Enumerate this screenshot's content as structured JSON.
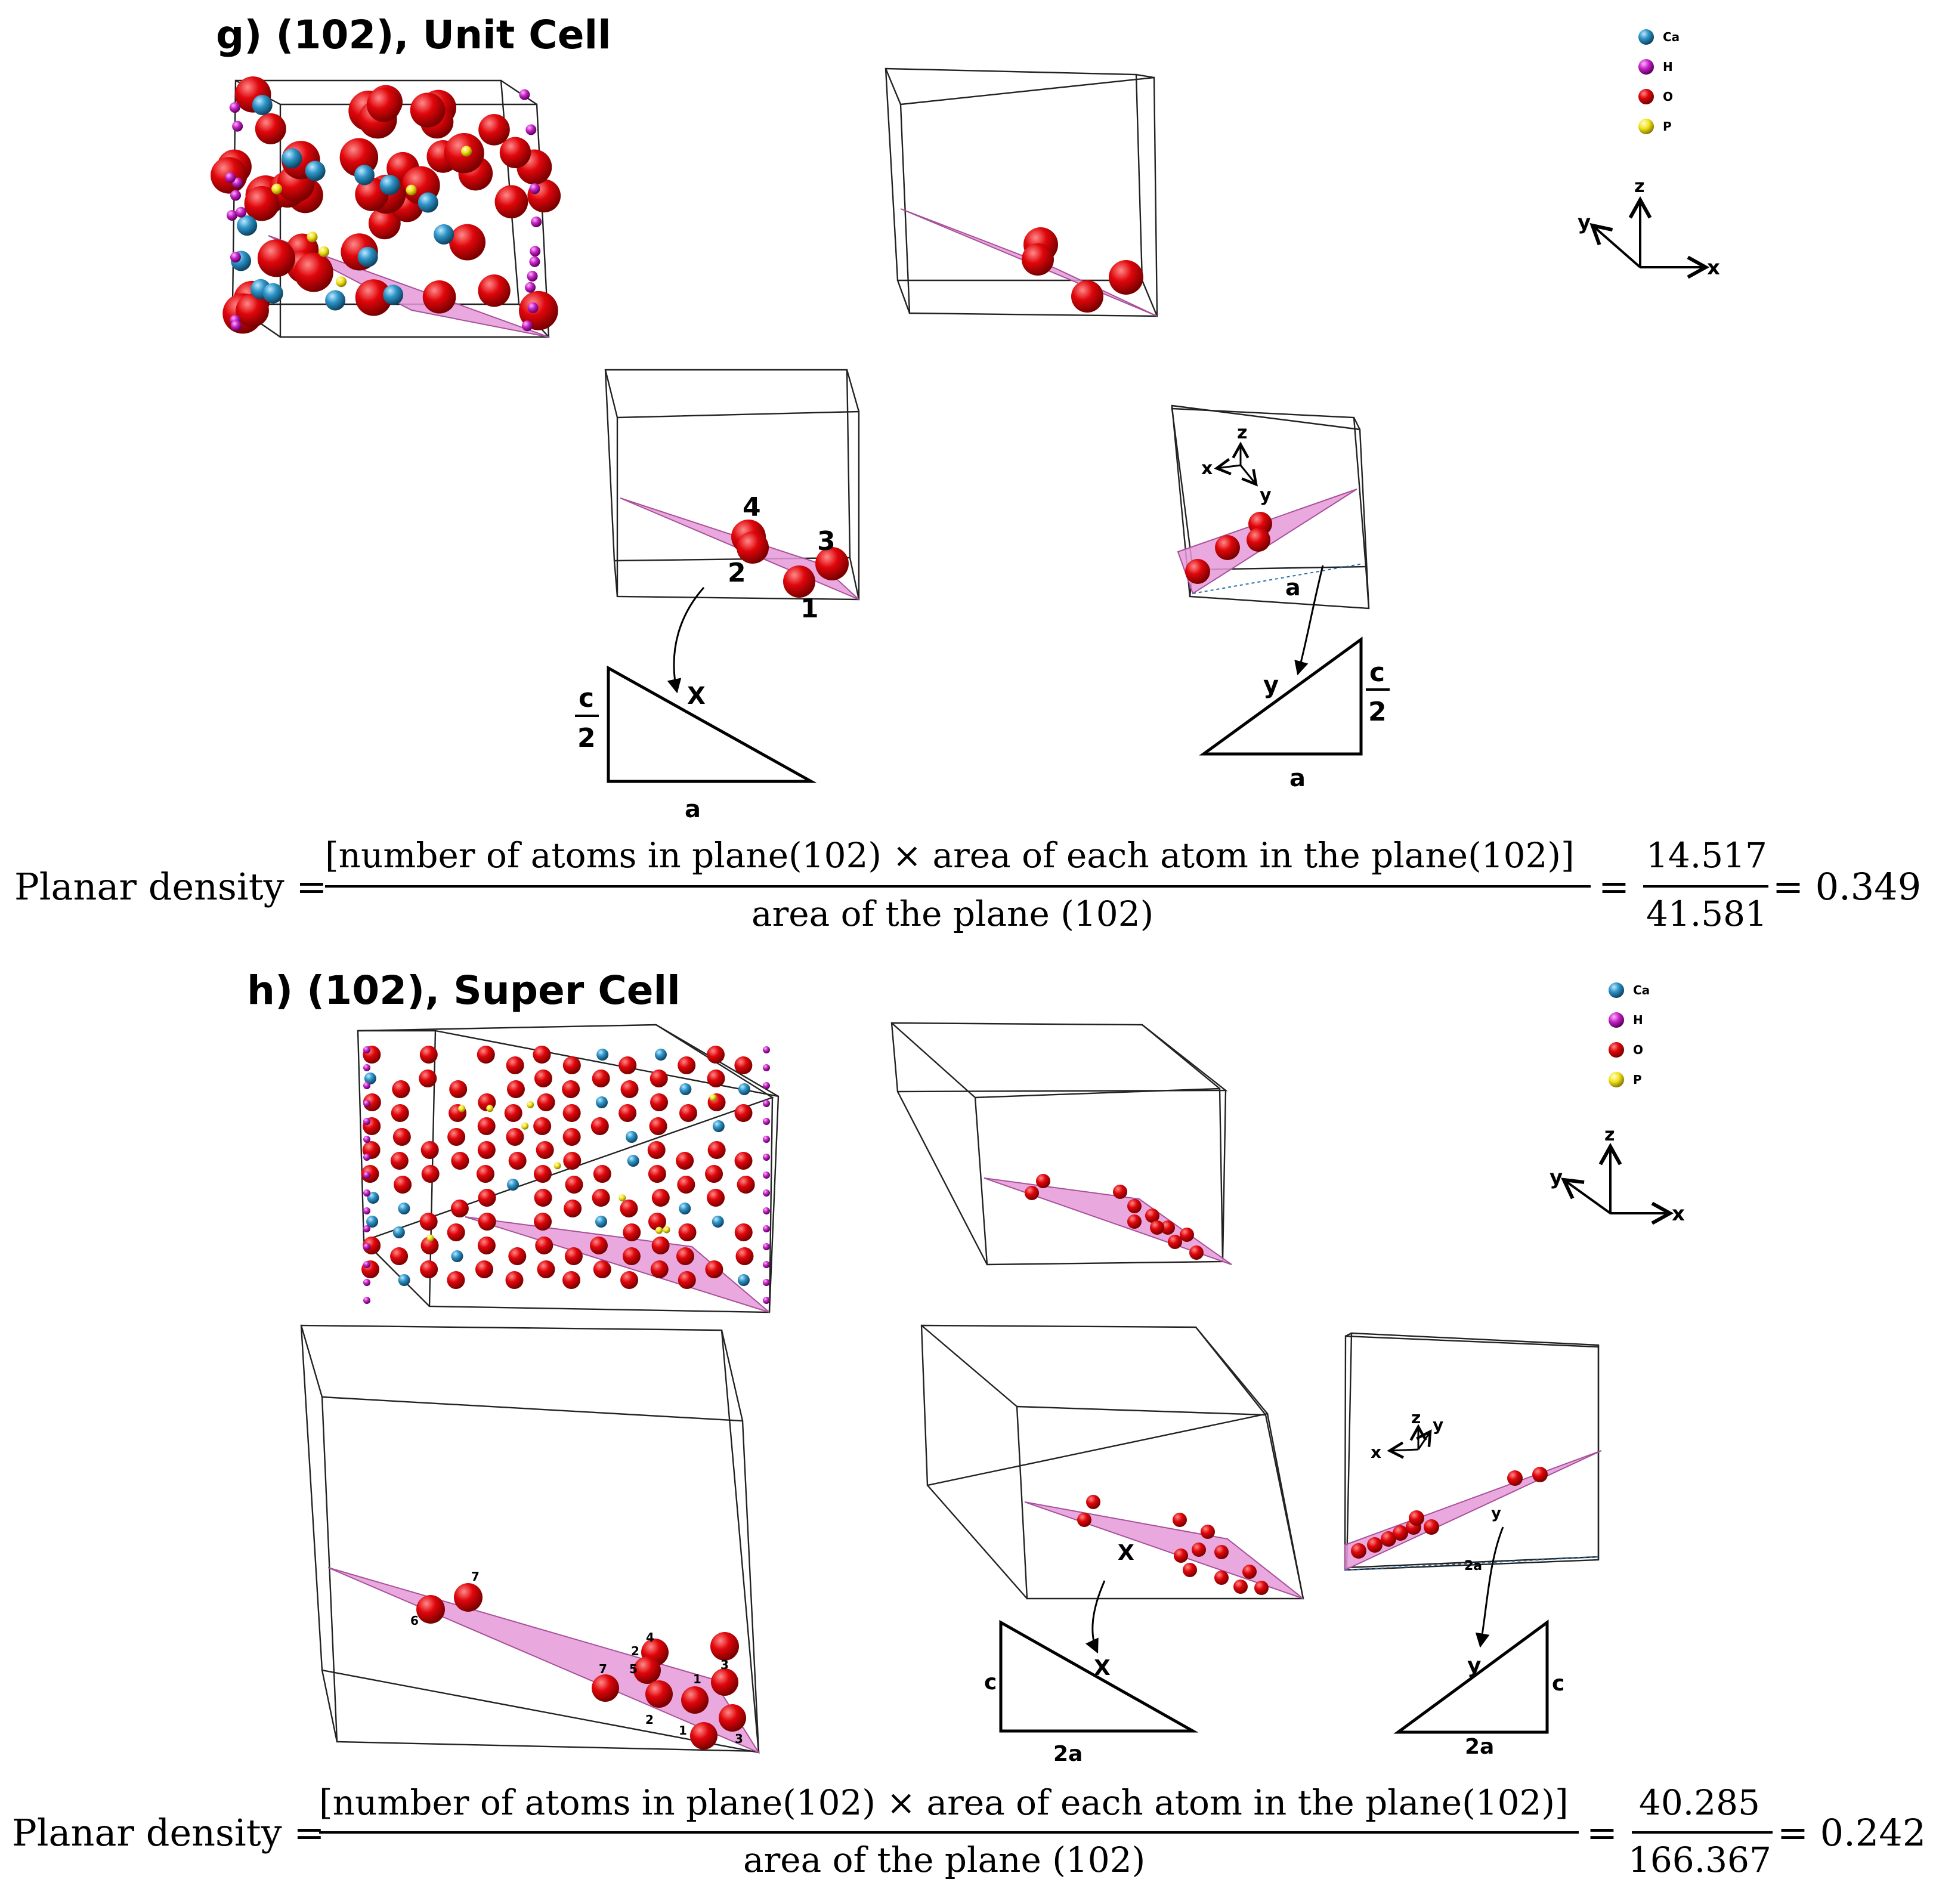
{
  "panel_g": {
    "title": "g) (102), Unit Cell",
    "legend": [
      "Ca",
      "H",
      "O",
      "P"
    ],
    "axes": {
      "x": "x",
      "y": "y",
      "z": "z"
    },
    "atom_numbers": [
      "1",
      "2",
      "3",
      "4"
    ],
    "tri_left": {
      "side": "c",
      "side_den": "2",
      "base": "a",
      "hyp": "X"
    },
    "tri_right": {
      "side": "c",
      "side_den": "2",
      "base": "a",
      "hyp": "y"
    },
    "box_label_a": "a",
    "equation": {
      "lhs": "Planar density =",
      "numerator": "[number of atoms in plane(102) × area of each atom in the plane(102)]",
      "denominator": "area of the plane (102)",
      "eq_sign": "=",
      "frac_num": "14.517",
      "frac_den": "41.581",
      "result": "= 0.349"
    }
  },
  "panel_h": {
    "title": "h) (102), Super Cell",
    "legend": [
      "Ca",
      "H",
      "O",
      "P"
    ],
    "axes": {
      "x": "x",
      "y": "y",
      "z": "z"
    },
    "atom_numbers": [
      "1",
      "2",
      "3",
      "4",
      "5",
      "6",
      "7"
    ],
    "tri_left": {
      "side": "c",
      "base": "2a",
      "hyp": "X"
    },
    "tri_right": {
      "side": "c",
      "base": "2a",
      "hyp": "y"
    },
    "box_label_x": "X",
    "box_label_2a": "2a",
    "equation": {
      "lhs": "Planar density =",
      "numerator": "[number of atoms in plane(102) × area of each atom in the plane(102)]",
      "denominator": "area of the plane (102)",
      "eq_sign": "=",
      "frac_num": "40.285",
      "frac_den": "166.367",
      "result": "= 0.242"
    }
  },
  "colors": {
    "Ca": "#2f95c8",
    "H": "#c21fc2",
    "O": "#e0060b",
    "P": "#f2e21a",
    "plane": "#e69ad8"
  }
}
